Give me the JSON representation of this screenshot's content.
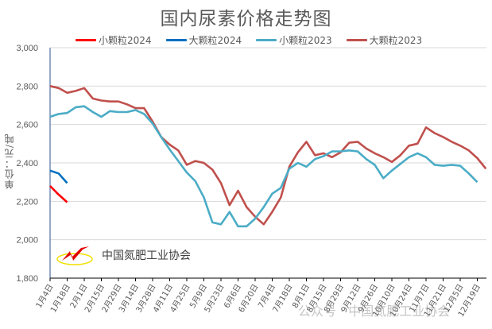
{
  "title": "国内尿素价格走势图",
  "y_axis_label": "单位：元/吨",
  "logo_text": "中国氮肥工业协会",
  "watermark": "公众号 · 中国氮肥工业协会",
  "legend": [
    {
      "label": "小颗粒2024",
      "color": "#ff0000"
    },
    {
      "label": "大颗粒2024",
      "color": "#0070c0"
    },
    {
      "label": "小颗粒2023",
      "color": "#4bacc6"
    },
    {
      "label": "大颗粒2023",
      "color": "#c0504d"
    }
  ],
  "chart_data": {
    "type": "line",
    "title": "国内尿素价格走势图",
    "xlabel": "",
    "ylabel": "单位：元/吨",
    "ylim": [
      1800,
      3000
    ],
    "yticks": [
      1800,
      2000,
      2200,
      2400,
      2600,
      2800,
      3000
    ],
    "ytick_labels": [
      "1,800",
      "2,000",
      "2,200",
      "2,400",
      "2,600",
      "2,800",
      "3,000"
    ],
    "grid": "horizontal",
    "legend_position": "top",
    "x_tick_labels": [
      "1月4日",
      "1月18日",
      "2月1日",
      "2月15日",
      "2月29日",
      "3月14日",
      "3月28日",
      "4月11日",
      "4月25日",
      "5月9日",
      "5月23日",
      "6月6日",
      "6月20日",
      "7月4日",
      "7月18日",
      "8月1日",
      "8月15日",
      "8月29日",
      "9月12日",
      "9月26日",
      "10月10日",
      "10月24日",
      "11月7日",
      "11月21日",
      "12月5日",
      "12月19日"
    ],
    "x_interval": "weekly (ticks every 2 weeks)",
    "series": [
      {
        "name": "小颗粒2024",
        "color": "#ff0000",
        "values": [
          2280,
          2235,
          2195
        ]
      },
      {
        "name": "大颗粒2024",
        "color": "#0070c0",
        "values": [
          2360,
          2345,
          2295
        ]
      },
      {
        "name": "小颗粒2023",
        "color": "#4bacc6",
        "values": [
          2640,
          2655,
          2660,
          2690,
          2695,
          2665,
          2640,
          2670,
          2665,
          2665,
          2675,
          2655,
          2605,
          2535,
          2470,
          2410,
          2350,
          2305,
          2220,
          2090,
          2080,
          2145,
          2070,
          2070,
          2110,
          2170,
          2240,
          2270,
          2370,
          2400,
          2380,
          2420,
          2435,
          2460,
          2460,
          2465,
          2460,
          2420,
          2390,
          2320,
          2360,
          2395,
          2430,
          2450,
          2430,
          2390,
          2385,
          2390,
          2385,
          2345,
          2300
        ]
      },
      {
        "name": "大颗粒2023",
        "color": "#c0504d",
        "values": [
          2800,
          2790,
          2765,
          2775,
          2790,
          2735,
          2725,
          2720,
          2720,
          2705,
          2685,
          2685,
          2615,
          2535,
          2495,
          2465,
          2390,
          2410,
          2400,
          2365,
          2295,
          2180,
          2255,
          2170,
          2120,
          2080,
          2145,
          2220,
          2380,
          2455,
          2510,
          2440,
          2450,
          2430,
          2455,
          2505,
          2510,
          2475,
          2450,
          2430,
          2405,
          2440,
          2490,
          2500,
          2585,
          2555,
          2535,
          2510,
          2490,
          2465,
          2425,
          2370
        ]
      }
    ]
  }
}
